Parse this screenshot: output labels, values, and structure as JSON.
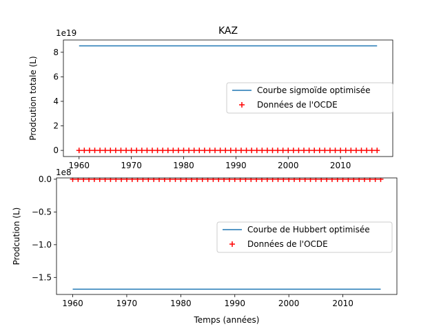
{
  "chart_data": [
    {
      "type": "line",
      "title": "KAZ",
      "xlabel": "",
      "ylabel": "Prodcution totale (L)",
      "offset_label": "1e19",
      "xlim": [
        1957,
        2020
      ],
      "ylim": [
        -0.5,
        9.0
      ],
      "x_ticks": [
        1960,
        1970,
        1980,
        1990,
        2000,
        2010
      ],
      "y_ticks": [
        0,
        2,
        4,
        6,
        8
      ],
      "legend_position": "center-right",
      "series": [
        {
          "name": "Courbe sigmoïde optimisée",
          "kind": "line",
          "color": "#1f77b4",
          "x": [
            1960,
            2017
          ],
          "y": [
            8.52,
            8.52
          ]
        },
        {
          "name": "Données de l'OCDE",
          "kind": "scatter",
          "marker": "plus",
          "color": "#ff0000",
          "x_start": 1960,
          "x_end": 2017,
          "y_constant": 0
        }
      ]
    },
    {
      "type": "line",
      "title": "",
      "xlabel": "Temps (années)",
      "ylabel": "Prodcution (L)",
      "offset_label": "1e8",
      "xlim": [
        1957,
        2020
      ],
      "ylim": [
        -1.76,
        0.02
      ],
      "x_ticks": [
        1960,
        1970,
        1980,
        1990,
        2000,
        2010
      ],
      "y_ticks": [
        0.0,
        -0.5,
        -1.0,
        -1.5
      ],
      "y_tick_labels": [
        "0.0",
        "−0.5",
        "−1.0",
        "−1.5"
      ],
      "legend_position": "center-right",
      "series": [
        {
          "name": "Courbe de Hubbert optimisée",
          "kind": "line",
          "color": "#1f77b4",
          "x": [
            1960,
            2017
          ],
          "y": [
            -1.68,
            -1.68
          ]
        },
        {
          "name": "Données de l'OCDE",
          "kind": "scatter",
          "marker": "plus",
          "color": "#ff0000",
          "x_start": 1960,
          "x_end": 2017,
          "y_constant": 0
        }
      ]
    }
  ]
}
